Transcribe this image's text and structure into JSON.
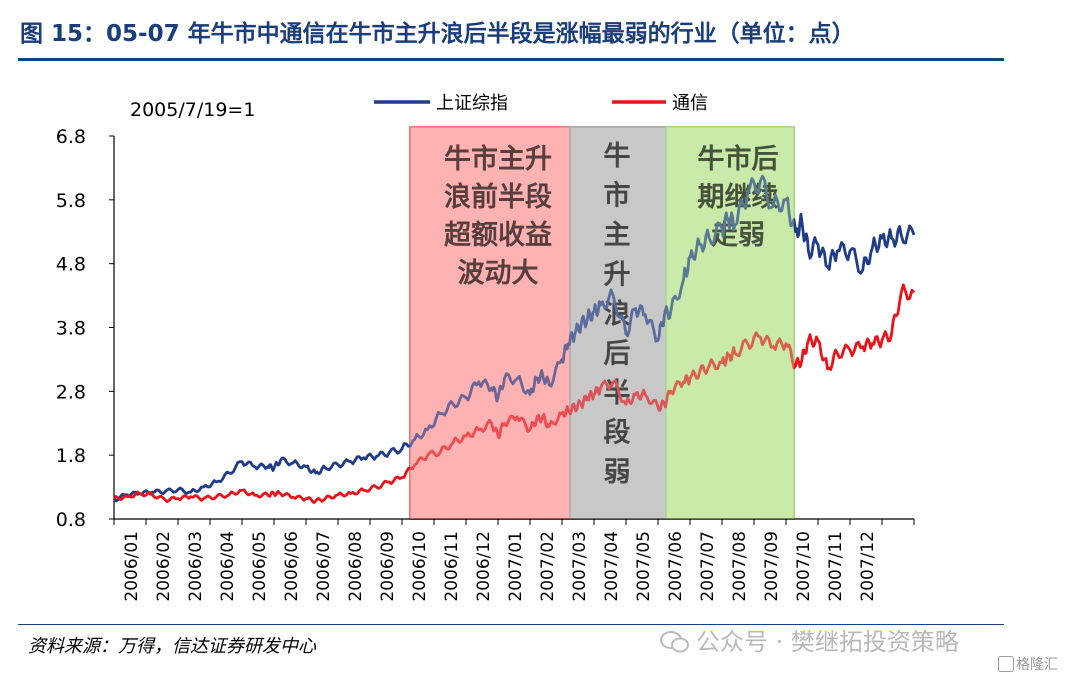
{
  "header": {
    "title": "图 15：05-07 年牛市中通信在牛市主升浪后半段是涨幅最弱的行业（单位：点）"
  },
  "footer": {
    "source": "资料来源：万得，信达证券研发中心",
    "watermark": "公众号 · 樊继拓投资策略",
    "logo": "格隆汇"
  },
  "chart_data": {
    "type": "line",
    "baseline_note": "2005/7/19=1",
    "ylim": [
      0.8,
      6.8
    ],
    "yticks": [
      "0.8",
      "1.8",
      "2.8",
      "3.8",
      "4.8",
      "5.8",
      "6.8"
    ],
    "x_tick_labels": [
      "2006/01",
      "2006/02",
      "2006/03",
      "2006/04",
      "2006/05",
      "2006/06",
      "2006/07",
      "2006/08",
      "2006/09",
      "2006/10",
      "2006/11",
      "2006/12",
      "2007/01",
      "2007/02",
      "2007/03",
      "2007/04",
      "2007/05",
      "2007/06",
      "2007/07",
      "2007/08",
      "2007/09",
      "2007/10",
      "2007/11",
      "2007/12"
    ],
    "x_range": [
      "2006/01",
      "2008/01"
    ],
    "colors": {
      "上证综指": "#1f3c88",
      "通信": "#e8141c"
    },
    "shaded_regions": [
      {
        "start": "2006/10",
        "end": "2007/03",
        "label_lines": [
          "牛市主升",
          "浪前半段",
          "超额收益",
          "波动大"
        ],
        "color": "#ffb3b3",
        "border": "#e87a7a"
      },
      {
        "start": "2007/03",
        "end": "2007/06",
        "label_lines": [
          "牛",
          "市",
          "主",
          "升",
          "浪",
          "后",
          "半",
          "段",
          "弱"
        ],
        "color": "#c8c8c8",
        "border": "#a8a8a8"
      },
      {
        "start": "2007/06",
        "end": "2007/10",
        "label_lines": [
          "牛市后",
          "期继续",
          "走弱"
        ],
        "color": "#c9eaa9",
        "border": "#a8d687"
      }
    ],
    "series": [
      {
        "name": "上证综指",
        "x": [
          0,
          0.4,
          0.8,
          1.2,
          1.6,
          2.0,
          2.4,
          2.8,
          3.2,
          3.6,
          4.0,
          4.4,
          4.8,
          5.0,
          5.2,
          5.6,
          6.0,
          6.3,
          6.6,
          7.0,
          7.4,
          7.8,
          8.2,
          8.6,
          9.0,
          9.4,
          9.8,
          10.2,
          10.6,
          11.0,
          11.4,
          11.8,
          12.0,
          12.2,
          12.6,
          13.0,
          13.2,
          13.4,
          13.6,
          14.0,
          14.2,
          14.4,
          14.6,
          14.8,
          15.0,
          15.2,
          15.6,
          16.0,
          16.3,
          16.6,
          17.0,
          17.2,
          17.4,
          17.8,
          18.0,
          18.3,
          18.6,
          19.0,
          19.2,
          19.4,
          19.8,
          20.2,
          20.6,
          21.0,
          21.3,
          21.5,
          21.7,
          22.0,
          22.3,
          22.6,
          23.0,
          23.4,
          23.7,
          24.0,
          24.3,
          24.6,
          25.0
        ],
        "values": [
          1.1,
          1.18,
          1.2,
          1.22,
          1.23,
          1.26,
          1.22,
          1.3,
          1.38,
          1.52,
          1.7,
          1.62,
          1.62,
          1.6,
          1.72,
          1.68,
          1.62,
          1.52,
          1.6,
          1.65,
          1.7,
          1.76,
          1.78,
          1.84,
          1.9,
          2.05,
          2.2,
          2.45,
          2.6,
          2.7,
          2.95,
          2.85,
          2.7,
          3.0,
          3.0,
          2.75,
          3.0,
          3.05,
          2.9,
          3.3,
          3.55,
          3.7,
          3.85,
          3.95,
          4.05,
          4.15,
          4.3,
          3.7,
          4.1,
          4.0,
          3.6,
          4.0,
          4.05,
          4.55,
          4.9,
          5.1,
          5.2,
          5.35,
          5.5,
          5.4,
          5.9,
          6.1,
          5.7,
          5.8,
          5.3,
          5.45,
          5.0,
          5.1,
          4.75,
          5.0,
          5.0,
          4.7,
          5.05,
          5.2,
          5.2,
          5.25,
          5.25
        ]
      },
      {
        "name": "通信",
        "x": [
          0,
          0.4,
          0.8,
          1.2,
          1.6,
          2.0,
          2.4,
          2.8,
          3.2,
          3.6,
          4.0,
          4.4,
          4.8,
          5.0,
          5.2,
          5.6,
          6.0,
          6.3,
          6.6,
          7.0,
          7.4,
          7.8,
          8.2,
          8.6,
          9.0,
          9.4,
          9.8,
          10.2,
          10.6,
          11.0,
          11.4,
          11.8,
          12.0,
          12.2,
          12.6,
          13.0,
          13.2,
          13.4,
          13.6,
          14.0,
          14.2,
          14.4,
          14.6,
          14.8,
          15.0,
          15.2,
          15.6,
          16.0,
          16.3,
          16.6,
          17.0,
          17.2,
          17.4,
          17.8,
          18.0,
          18.3,
          18.6,
          19.0,
          19.2,
          19.4,
          19.8,
          20.2,
          20.6,
          21.0,
          21.3,
          21.5,
          21.7,
          22.0,
          22.3,
          22.6,
          23.0,
          23.4,
          23.7,
          24.0,
          24.3,
          24.6,
          25.0
        ],
        "values": [
          1.12,
          1.15,
          1.2,
          1.18,
          1.1,
          1.12,
          1.15,
          1.12,
          1.15,
          1.18,
          1.25,
          1.17,
          1.18,
          1.2,
          1.2,
          1.14,
          1.12,
          1.08,
          1.12,
          1.18,
          1.2,
          1.25,
          1.3,
          1.38,
          1.45,
          1.65,
          1.8,
          1.85,
          2.0,
          2.1,
          2.2,
          2.3,
          2.1,
          2.3,
          2.4,
          2.2,
          2.35,
          2.4,
          2.25,
          2.45,
          2.5,
          2.55,
          2.6,
          2.7,
          2.75,
          2.85,
          2.95,
          2.6,
          2.75,
          2.75,
          2.55,
          2.6,
          2.8,
          2.95,
          3.0,
          3.1,
          3.2,
          3.25,
          3.35,
          3.4,
          3.55,
          3.65,
          3.5,
          3.55,
          3.2,
          3.3,
          3.6,
          3.6,
          3.15,
          3.4,
          3.45,
          3.5,
          3.55,
          3.6,
          3.7,
          4.35,
          4.35
        ]
      }
    ]
  }
}
